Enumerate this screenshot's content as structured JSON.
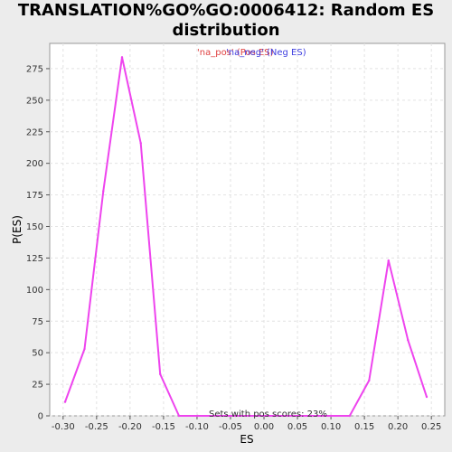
{
  "chart_data": {
    "type": "line",
    "title_line1": "TRANSLATION%GO%GO:0006412: Random ES",
    "title_line2": "distribution",
    "xlabel": "ES",
    "ylabel": "P(ES)",
    "xlim": [
      -0.32,
      0.27
    ],
    "ylim": [
      0,
      295
    ],
    "x_ticks": [
      -0.3,
      -0.25,
      -0.2,
      -0.15,
      -0.1,
      -0.05,
      0.0,
      0.05,
      0.1,
      0.15,
      0.2,
      0.25
    ],
    "x_tick_labels": [
      "-0.30",
      "-0.25",
      "-0.20",
      "-0.15",
      "-0.10",
      "-0.05",
      "0.00",
      "0.05",
      "0.10",
      "0.15",
      "0.20",
      "0.25"
    ],
    "y_ticks": [
      0,
      25,
      50,
      75,
      100,
      125,
      150,
      175,
      200,
      225,
      250,
      275
    ],
    "y_tick_labels": [
      "0",
      "25",
      "50",
      "75",
      "100",
      "125",
      "150",
      "175",
      "200",
      "225",
      "250",
      "275"
    ],
    "grid": true,
    "legend_labels": [
      "'na_pos' (Pos ES)",
      "'na_neg' (Neg ES)"
    ],
    "legend_colors": [
      "#e04040",
      "#4040e0"
    ],
    "line_color": "#ee44ee",
    "annotation": "Sets with pos scores: 23%",
    "series": [
      {
        "x": [
          -0.297,
          -0.268,
          -0.24,
          -0.212,
          -0.184,
          -0.155,
          -0.127,
          -0.099,
          -0.07,
          -0.042,
          -0.014,
          0.015,
          0.043,
          0.071,
          0.1,
          0.128,
          0.157,
          0.186,
          0.215,
          0.243
        ],
        "values": [
          11,
          53,
          178,
          284,
          216,
          33,
          0,
          0,
          0,
          0,
          0,
          0,
          0,
          0,
          0,
          0,
          28,
          123,
          60,
          15
        ]
      }
    ]
  }
}
